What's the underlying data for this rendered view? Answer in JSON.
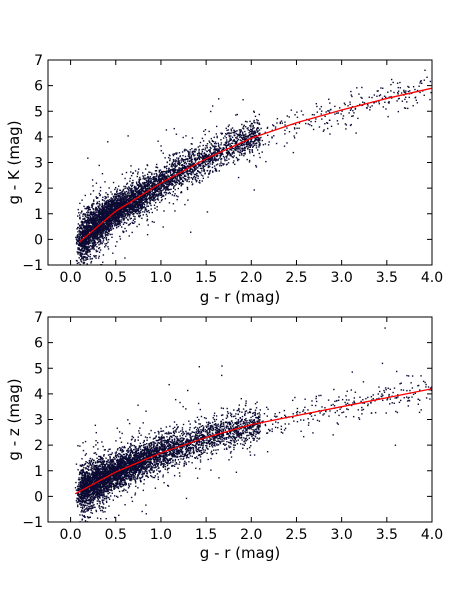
{
  "colors": {
    "points": "#0b0b33",
    "fit_line": "#ff0000",
    "axes": "#000000",
    "background": "#ffffff"
  },
  "chart_data": [
    {
      "type": "scatter",
      "title": "",
      "xlabel": "g - r (mag)",
      "ylabel": "g - K (mag)",
      "xlim": [
        -0.25,
        4.0
      ],
      "ylim": [
        -1,
        7
      ],
      "xticks": [
        0.0,
        0.5,
        1.0,
        1.5,
        2.0,
        2.5,
        3.0,
        3.5,
        4.0
      ],
      "xtick_labels": [
        "0.0",
        "0.5",
        "1.0",
        "1.5",
        "2.0",
        "2.5",
        "3.0",
        "3.5",
        "4.0"
      ],
      "yticks": [
        -1,
        0,
        1,
        2,
        3,
        4,
        5,
        6,
        7
      ],
      "ytick_labels": [
        "−1",
        "0",
        "1",
        "2",
        "3",
        "4",
        "5",
        "6",
        "7"
      ],
      "grid": false,
      "density_ridge": [
        {
          "x": 0.1,
          "y": -0.05
        },
        {
          "x": 0.3,
          "y": 0.6
        },
        {
          "x": 0.5,
          "y": 1.1
        },
        {
          "x": 0.75,
          "y": 1.6
        },
        {
          "x": 1.0,
          "y": 2.2
        },
        {
          "x": 1.25,
          "y": 2.7
        },
        {
          "x": 1.5,
          "y": 3.2
        },
        {
          "x": 1.75,
          "y": 3.6
        },
        {
          "x": 2.0,
          "y": 3.95
        },
        {
          "x": 2.5,
          "y": 4.45
        },
        {
          "x": 3.0,
          "y": 4.95
        },
        {
          "x": 3.5,
          "y": 5.45
        },
        {
          "x": 4.0,
          "y": 5.9
        }
      ],
      "series": [
        {
          "style": "fit_line",
          "points": [
            {
              "x": 0.1,
              "y": -0.1
            },
            {
              "x": 0.5,
              "y": 1.1
            },
            {
              "x": 1.0,
              "y": 2.2
            },
            {
              "x": 1.5,
              "y": 3.15
            },
            {
              "x": 2.0,
              "y": 3.95
            },
            {
              "x": 2.5,
              "y": 4.55
            },
            {
              "x": 3.0,
              "y": 5.05
            },
            {
              "x": 3.5,
              "y": 5.5
            },
            {
              "x": 4.0,
              "y": 5.9
            }
          ]
        }
      ]
    },
    {
      "type": "scatter",
      "title": "",
      "xlabel": "g - r (mag)",
      "ylabel": "g - z (mag)",
      "xlim": [
        -0.25,
        4.0
      ],
      "ylim": [
        -1,
        7
      ],
      "xticks": [
        0.0,
        0.5,
        1.0,
        1.5,
        2.0,
        2.5,
        3.0,
        3.5,
        4.0
      ],
      "xtick_labels": [
        "0.0",
        "0.5",
        "1.0",
        "1.5",
        "2.0",
        "2.5",
        "3.0",
        "3.5",
        "4.0"
      ],
      "yticks": [
        -1,
        0,
        1,
        2,
        3,
        4,
        5,
        6,
        7
      ],
      "ytick_labels": [
        "−1",
        "0",
        "1",
        "2",
        "3",
        "4",
        "5",
        "6",
        "7"
      ],
      "grid": false,
      "density_ridge": [
        {
          "x": 0.1,
          "y": 0.2
        },
        {
          "x": 0.3,
          "y": 0.6
        },
        {
          "x": 0.5,
          "y": 0.95
        },
        {
          "x": 0.75,
          "y": 1.35
        },
        {
          "x": 1.0,
          "y": 1.7
        },
        {
          "x": 1.25,
          "y": 2.0
        },
        {
          "x": 1.5,
          "y": 2.3
        },
        {
          "x": 1.75,
          "y": 2.55
        },
        {
          "x": 2.0,
          "y": 2.75
        },
        {
          "x": 2.5,
          "y": 3.15
        },
        {
          "x": 3.0,
          "y": 3.5
        },
        {
          "x": 3.5,
          "y": 3.85
        },
        {
          "x": 4.0,
          "y": 4.2
        }
      ],
      "series": [
        {
          "style": "fit_line",
          "points": [
            {
              "x": 0.05,
              "y": 0.1
            },
            {
              "x": 0.5,
              "y": 0.95
            },
            {
              "x": 1.0,
              "y": 1.7
            },
            {
              "x": 1.5,
              "y": 2.3
            },
            {
              "x": 2.0,
              "y": 2.8
            },
            {
              "x": 2.5,
              "y": 3.15
            },
            {
              "x": 3.0,
              "y": 3.5
            },
            {
              "x": 3.5,
              "y": 3.85
            },
            {
              "x": 4.0,
              "y": 4.2
            }
          ]
        }
      ]
    }
  ]
}
